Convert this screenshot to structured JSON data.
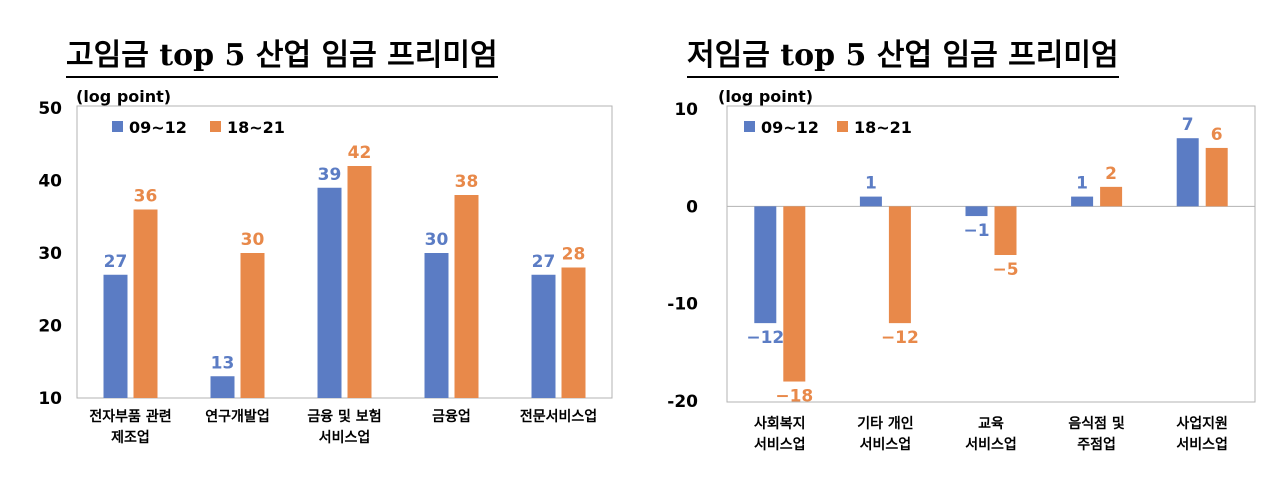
{
  "chart_data": [
    {
      "type": "bar",
      "title": "고임금 top 5 산업 임금 프리미엄",
      "unit_label": "(log point)",
      "categories": [
        [
          "전자부품 관련",
          "제조업"
        ],
        [
          "연구개발업"
        ],
        [
          "금융 및 보험",
          "서비스업"
        ],
        [
          "금융업"
        ],
        [
          "전문서비스업"
        ]
      ],
      "series": [
        {
          "name": "09~12",
          "color": "#5B7CC4",
          "values": [
            27,
            13,
            39,
            30,
            27
          ]
        },
        {
          "name": "18~21",
          "color": "#E8894A",
          "values": [
            36,
            30,
            42,
            38,
            28
          ]
        }
      ],
      "data_labels": [
        [
          "27",
          "13",
          "39",
          "30",
          "27"
        ],
        [
          "36",
          "30",
          "42",
          "38",
          "28"
        ]
      ],
      "yticks": [
        "10",
        "20",
        "30",
        "40",
        "50"
      ],
      "ylim": [
        10,
        50
      ],
      "legend": "top-left",
      "grid": false
    },
    {
      "type": "bar",
      "title": "저임금 top 5 산업 임금 프리미엄",
      "unit_label": "(log point)",
      "categories": [
        [
          "사회복지",
          "서비스업"
        ],
        [
          "기타 개인",
          "서비스업"
        ],
        [
          "교육",
          "서비스업"
        ],
        [
          "음식점 및",
          "주점업"
        ],
        [
          "사업지원",
          "서비스업"
        ]
      ],
      "series": [
        {
          "name": "09~12",
          "color": "#5B7CC4",
          "values": [
            -12,
            1,
            -1,
            1,
            7
          ]
        },
        {
          "name": "18~21",
          "color": "#E8894A",
          "values": [
            -18,
            -12,
            -5,
            2,
            6
          ]
        }
      ],
      "data_labels": [
        [
          "−12",
          "1",
          "−1",
          "1",
          "7"
        ],
        [
          "−18",
          "−12",
          "−5",
          "2",
          "6"
        ]
      ],
      "yticks": [
        "-20",
        "-10",
        "0",
        "10"
      ],
      "ylim": [
        -20,
        10
      ],
      "legend": "top-left",
      "grid": false
    }
  ]
}
